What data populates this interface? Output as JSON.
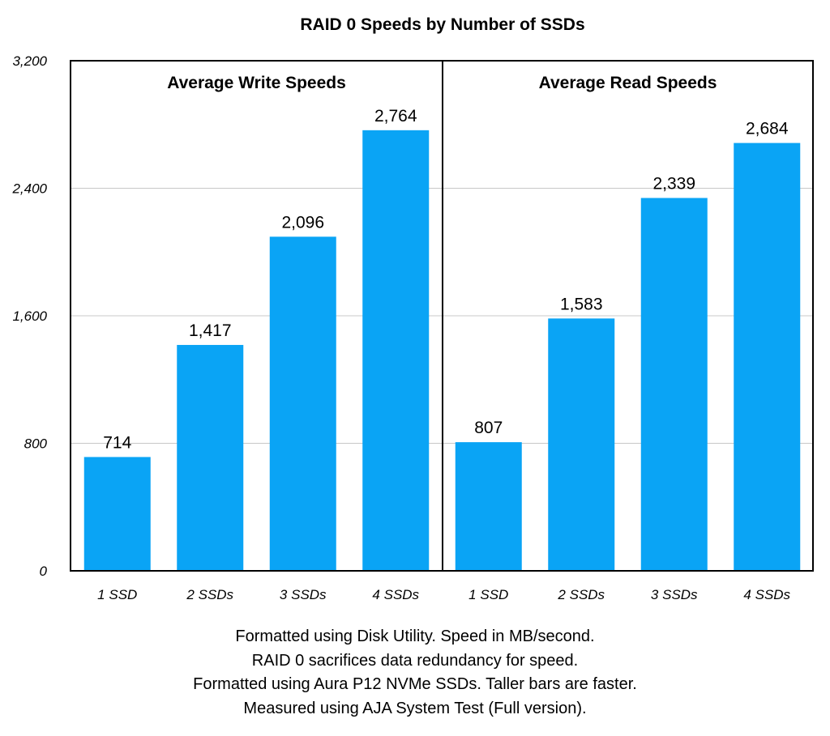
{
  "chart_data": {
    "type": "bar",
    "title": "RAID 0 Speeds by Number of SSDs",
    "ylim": [
      0,
      3200
    ],
    "yticks": [
      "0",
      "800",
      "1,600",
      "2,400",
      "3,200"
    ],
    "ytick_values": [
      0,
      800,
      1600,
      2400,
      3200
    ],
    "grid": true,
    "bar_color": "#0aa4f5",
    "categories": [
      "1 SSD",
      "2 SSDs",
      "3 SSDs",
      "4 SSDs"
    ],
    "panels": [
      {
        "name": "Average Write Speeds",
        "values": [
          714,
          1417,
          2096,
          2764
        ],
        "labels": [
          "714",
          "1,417",
          "2,096",
          "2,764"
        ]
      },
      {
        "name": "Average Read Speeds",
        "values": [
          807,
          1583,
          2339,
          2684
        ],
        "labels": [
          "807",
          "1,583",
          "2,339",
          "2,684"
        ]
      }
    ]
  },
  "notes": [
    "Formatted using Disk Utility. Speed in MB/second.",
    "RAID 0 sacrifices data redundancy for speed.",
    "Formatted using Aura P12 NVMe SSDs. Taller bars are faster.",
    "Measured using AJA System Test (Full version)."
  ]
}
